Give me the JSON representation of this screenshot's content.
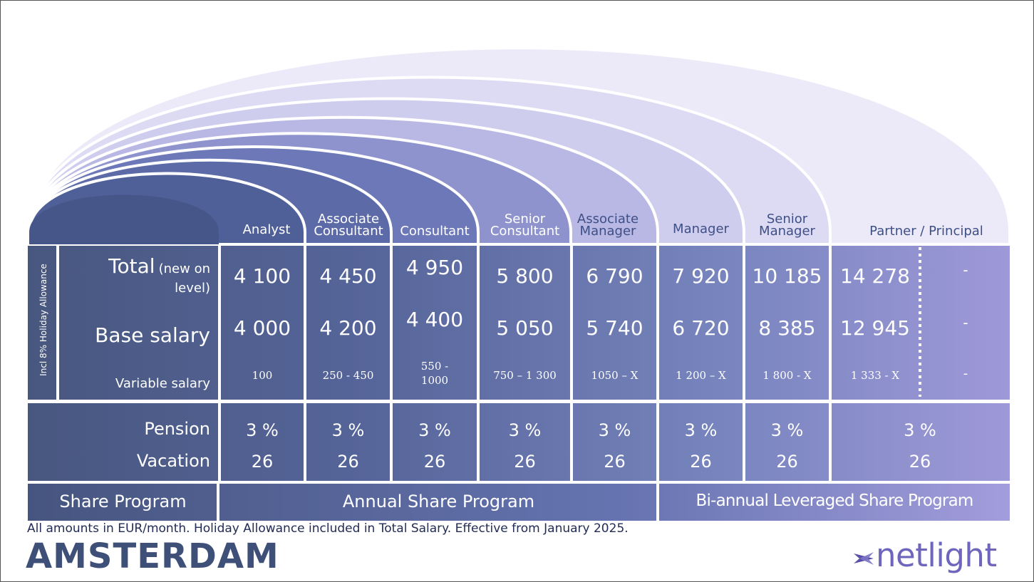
{
  "levels": [
    {
      "line1": "Analyst",
      "line2": ""
    },
    {
      "line1": "Associate",
      "line2": "Consultant"
    },
    {
      "line1": "Consultant",
      "line2": ""
    },
    {
      "line1": "Senior",
      "line2": "Consultant"
    },
    {
      "line1": "Associate",
      "line2": "Manager"
    },
    {
      "line1": "Manager",
      "line2": ""
    },
    {
      "line1": "Senior",
      "line2": "Manager"
    },
    {
      "line1": "Partner / Principal",
      "line2": ""
    }
  ],
  "side_label": "Incl 8% Holiday Allowance",
  "row_labels": {
    "total_main": "Total",
    "total_sub1": "(new on",
    "total_sub2": "level)",
    "base": "Base salary",
    "variable": "Variable salary",
    "pension": "Pension",
    "vacation": "Vacation",
    "share": "Share Program"
  },
  "salary": {
    "total": [
      "4 100",
      "4 450",
      "4 950",
      "5 800",
      "6 790",
      "7 920",
      "10 185",
      "14 278",
      "-"
    ],
    "base": [
      "4 000",
      "4 200",
      "4 400",
      "5 050",
      "5 740",
      "6 720",
      "8 385",
      "12 945",
      "-"
    ],
    "variable": [
      {
        "l1": "100",
        "l2": ""
      },
      {
        "l1": "250 - 450",
        "l2": ""
      },
      {
        "l1": "550 -",
        "l2": "1000"
      },
      {
        "l1": "750 – 1 300",
        "l2": ""
      },
      {
        "l1": "1050 – X",
        "l2": ""
      },
      {
        "l1": "1 200 – X",
        "l2": ""
      },
      {
        "l1": "1 800 - X",
        "l2": ""
      },
      {
        "l1": "1 333 - X",
        "l2": ""
      },
      {
        "l1": "-",
        "l2": ""
      }
    ]
  },
  "benefits": {
    "pension": [
      "3 %",
      "3 %",
      "3 %",
      "3 %",
      "3 %",
      "3 %",
      "3 %",
      "3 %"
    ],
    "vacation": [
      "26",
      "26",
      "26",
      "26",
      "26",
      "26",
      "26",
      "26"
    ]
  },
  "share_programs": {
    "annual": "Annual Share Program",
    "biannual": "Bi-annual Leveraged Share Program"
  },
  "footnote": "All amounts in EUR/month. Holiday Allowance included in Total Salary. Effective from January 2025.",
  "city": "AMSTERDAM",
  "logo_text": "netlight",
  "colors": {
    "dark_blue": "#4a5a8c",
    "mid_blue": "#5d6fa8",
    "violet": "#8a83c8",
    "light_lavender": "#eceaf8",
    "text_dark": "#3e4f78",
    "logo": "#6e66bc"
  }
}
